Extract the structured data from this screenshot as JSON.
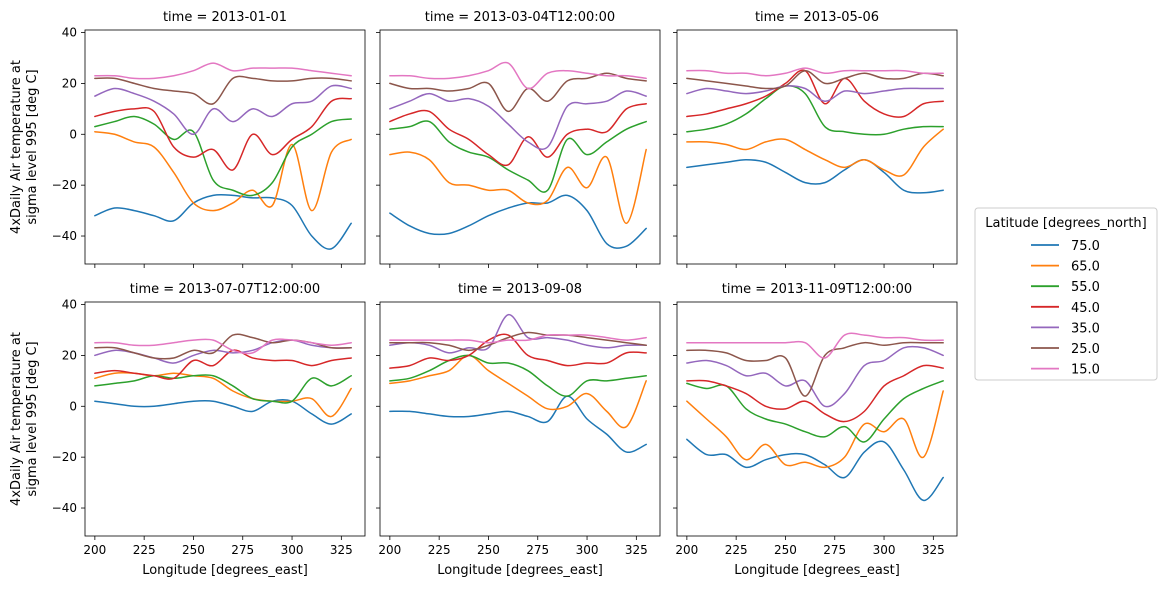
{
  "chart_data": {
    "type": "line",
    "xlabel": "Longitude [degrees_east]",
    "ylabel": [
      "4xDaily Air temperature at",
      "sigma level 995 [deg C]"
    ],
    "xlim": [
      195,
      337
    ],
    "ylim": [
      -51,
      41
    ],
    "xticks": [
      "200",
      "225",
      "250",
      "275",
      "300",
      "325"
    ],
    "yticks": [
      "−40",
      "−20",
      "0",
      "20",
      "40"
    ],
    "legend": {
      "title": "Latitude [degrees_north]",
      "placement": "right",
      "entries": [
        "75.0",
        "65.0",
        "55.0",
        "45.0",
        "35.0",
        "25.0",
        "15.0"
      ]
    },
    "series_colors": [
      "#1f77b4",
      "#ff7f0e",
      "#2ca02c",
      "#d62728",
      "#9467bd",
      "#8c564b",
      "#e377c2"
    ],
    "x": [
      200,
      210,
      220,
      230,
      240,
      250,
      260,
      270,
      280,
      290,
      300,
      310,
      320,
      330
    ],
    "panels": [
      {
        "title": "time = 2013-01-01",
        "series": [
          {
            "name": "75.0",
            "values": [
              -32,
              -29,
              -30,
              -32,
              -34,
              -27,
              -24,
              -24,
              -25,
              -25,
              -28,
              -40,
              -45,
              -35
            ]
          },
          {
            "name": "65.0",
            "values": [
              1,
              0,
              -3,
              -5,
              -15,
              -27,
              -30,
              -27,
              -22,
              -28,
              -4,
              -30,
              -7,
              -2
            ]
          },
          {
            "name": "55.0",
            "values": [
              3,
              5,
              7,
              4,
              -2,
              1,
              -18,
              -22,
              -24,
              -19,
              -5,
              0,
              5,
              6
            ]
          },
          {
            "name": "45.0",
            "values": [
              7,
              9,
              10,
              9,
              -5,
              -9,
              -6,
              -14,
              0,
              -8,
              -2,
              3,
              13,
              14
            ]
          },
          {
            "name": "35.0",
            "values": [
              15,
              18,
              16,
              13,
              8,
              0,
              10,
              5,
              10,
              7,
              12,
              13,
              19,
              18
            ]
          },
          {
            "name": "25.0",
            "values": [
              22,
              22,
              20,
              18,
              17,
              16,
              12,
              22,
              22,
              21,
              21,
              22,
              22,
              21
            ]
          },
          {
            "name": "15.0",
            "values": [
              23,
              23,
              22,
              22,
              23,
              25,
              28,
              25,
              26,
              26,
              26,
              25,
              24,
              23
            ]
          }
        ]
      },
      {
        "title": "time = 2013-03-04T12:00:00",
        "series": [
          {
            "name": "75.0",
            "values": [
              -31,
              -36,
              -39,
              -39,
              -36,
              -32,
              -29,
              -27,
              -27,
              -24,
              -30,
              -43,
              -44,
              -37
            ]
          },
          {
            "name": "65.0",
            "values": [
              -8,
              -7,
              -10,
              -19,
              -20,
              -22,
              -22,
              -27,
              -26,
              -13,
              -21,
              -9,
              -35,
              -6
            ]
          },
          {
            "name": "55.0",
            "values": [
              2,
              3,
              5,
              -3,
              -7,
              -9,
              -14,
              -18,
              -22,
              -2,
              -8,
              -3,
              2,
              5
            ]
          },
          {
            "name": "45.0",
            "values": [
              5,
              8,
              9,
              2,
              -2,
              -8,
              -12,
              -1,
              -9,
              0,
              2,
              1,
              10,
              12
            ]
          },
          {
            "name": "35.0",
            "values": [
              10,
              13,
              16,
              13,
              14,
              11,
              4,
              -3,
              -5,
              11,
              12,
              13,
              17,
              15
            ]
          },
          {
            "name": "25.0",
            "values": [
              20,
              18,
              18,
              17,
              18,
              20,
              9,
              18,
              13,
              21,
              22,
              24,
              22,
              21
            ]
          },
          {
            "name": "15.0",
            "values": [
              23,
              23,
              22,
              22,
              23,
              25,
              28,
              18,
              24,
              25,
              24,
              23,
              23,
              22
            ]
          }
        ]
      },
      {
        "title": "time = 2013-05-06",
        "series": [
          {
            "name": "75.0",
            "values": [
              -13,
              -12,
              -11,
              -10,
              -11,
              -15,
              -19,
              -19,
              -14,
              -10,
              -15,
              -22,
              -23,
              -22
            ]
          },
          {
            "name": "65.0",
            "values": [
              -3,
              -3,
              -4,
              -6,
              -3,
              -2,
              -6,
              -10,
              -13,
              -10,
              -14,
              -16,
              -5,
              2
            ]
          },
          {
            "name": "55.0",
            "values": [
              1,
              2,
              4,
              8,
              14,
              19,
              16,
              3,
              1,
              0,
              0,
              2,
              3,
              3
            ]
          },
          {
            "name": "45.0",
            "values": [
              7,
              8,
              10,
              12,
              15,
              20,
              25,
              12,
              22,
              13,
              8,
              7,
              12,
              13
            ]
          },
          {
            "name": "35.0",
            "values": [
              16,
              18,
              17,
              16,
              17,
              19,
              18,
              13,
              17,
              16,
              17,
              18,
              18,
              18
            ]
          },
          {
            "name": "25.0",
            "values": [
              22,
              21,
              20,
              19,
              18,
              19,
              25,
              20,
              22,
              24,
              22,
              22,
              24,
              23
            ]
          },
          {
            "name": "15.0",
            "values": [
              25,
              25,
              24,
              24,
              23,
              24,
              26,
              24,
              25,
              25,
              25,
              25,
              24,
              24
            ]
          }
        ]
      },
      {
        "title": "time = 2013-07-07T12:00:00",
        "series": [
          {
            "name": "75.0",
            "values": [
              2,
              1,
              0,
              0,
              1,
              2,
              2,
              0,
              -2,
              2,
              2,
              -3,
              -7,
              -3
            ]
          },
          {
            "name": "65.0",
            "values": [
              11,
              13,
              13,
              12,
              13,
              12,
              11,
              6,
              3,
              2,
              2,
              3,
              -4,
              7
            ]
          },
          {
            "name": "55.0",
            "values": [
              8,
              9,
              10,
              12,
              11,
              12,
              12,
              8,
              3,
              2,
              2,
              11,
              8,
              12
            ]
          },
          {
            "name": "45.0",
            "values": [
              13,
              14,
              13,
              12,
              11,
              18,
              16,
              22,
              19,
              18,
              18,
              16,
              18,
              19
            ]
          },
          {
            "name": "35.0",
            "values": [
              20,
              22,
              21,
              19,
              17,
              20,
              22,
              21,
              22,
              25,
              26,
              24,
              23,
              23
            ]
          },
          {
            "name": "25.0",
            "values": [
              23,
              23,
              21,
              19,
              19,
              22,
              21,
              28,
              27,
              25,
              26,
              25,
              23,
              23
            ]
          },
          {
            "name": "15.0",
            "values": [
              25,
              25,
              24,
              24,
              25,
              26,
              26,
              22,
              21,
              26,
              26,
              25,
              24,
              25
            ]
          }
        ]
      },
      {
        "title": "time = 2013-09-08",
        "series": [
          {
            "name": "75.0",
            "values": [
              -2,
              -2,
              -3,
              -4,
              -4,
              -3,
              -2,
              -4,
              -6,
              4,
              -5,
              -11,
              -18,
              -15
            ]
          },
          {
            "name": "65.0",
            "values": [
              9,
              10,
              12,
              14,
              20,
              14,
              9,
              4,
              -1,
              0,
              5,
              -2,
              -8,
              10
            ]
          },
          {
            "name": "55.0",
            "values": [
              10,
              11,
              14,
              18,
              20,
              17,
              17,
              14,
              8,
              4,
              10,
              10,
              11,
              12
            ]
          },
          {
            "name": "45.0",
            "values": [
              15,
              16,
              19,
              18,
              20,
              26,
              28,
              20,
              18,
              16,
              17,
              17,
              21,
              21
            ]
          },
          {
            "name": "35.0",
            "values": [
              24,
              25,
              24,
              21,
              23,
              23,
              36,
              27,
              27,
              26,
              24,
              23,
              24,
              24
            ]
          },
          {
            "name": "25.0",
            "values": [
              25,
              25,
              25,
              24,
              22,
              24,
              27,
              29,
              28,
              28,
              27,
              26,
              25,
              24
            ]
          },
          {
            "name": "15.0",
            "values": [
              26,
              26,
              26,
              26,
              26,
              25,
              26,
              26,
              28,
              28,
              28,
              27,
              26,
              27
            ]
          }
        ]
      },
      {
        "title": "time = 2013-11-09T12:00:00",
        "series": [
          {
            "name": "75.0",
            "values": [
              -13,
              -19,
              -19,
              -24,
              -21,
              -19,
              -19,
              -23,
              -28,
              -18,
              -14,
              -25,
              -37,
              -28
            ]
          },
          {
            "name": "65.0",
            "values": [
              2,
              -5,
              -12,
              -21,
              -15,
              -23,
              -22,
              -24,
              -20,
              -7,
              -10,
              -5,
              -20,
              6
            ]
          },
          {
            "name": "55.0",
            "values": [
              9,
              7,
              8,
              -1,
              -5,
              -7,
              -10,
              -12,
              -8,
              -14,
              -5,
              3,
              7,
              10
            ]
          },
          {
            "name": "45.0",
            "values": [
              10,
              10,
              8,
              5,
              0,
              -1,
              2,
              -3,
              -6,
              -2,
              8,
              12,
              16,
              15
            ]
          },
          {
            "name": "35.0",
            "values": [
              17,
              18,
              16,
              12,
              13,
              8,
              10,
              0,
              5,
              16,
              18,
              23,
              23,
              20
            ]
          },
          {
            "name": "25.0",
            "values": [
              22,
              22,
              21,
              18,
              18,
              19,
              4,
              20,
              23,
              25,
              24,
              25,
              25,
              25
            ]
          },
          {
            "name": "15.0",
            "values": [
              25,
              25,
              25,
              25,
              25,
              25,
              25,
              19,
              28,
              28,
              27,
              27,
              26,
              26
            ]
          }
        ]
      }
    ]
  }
}
